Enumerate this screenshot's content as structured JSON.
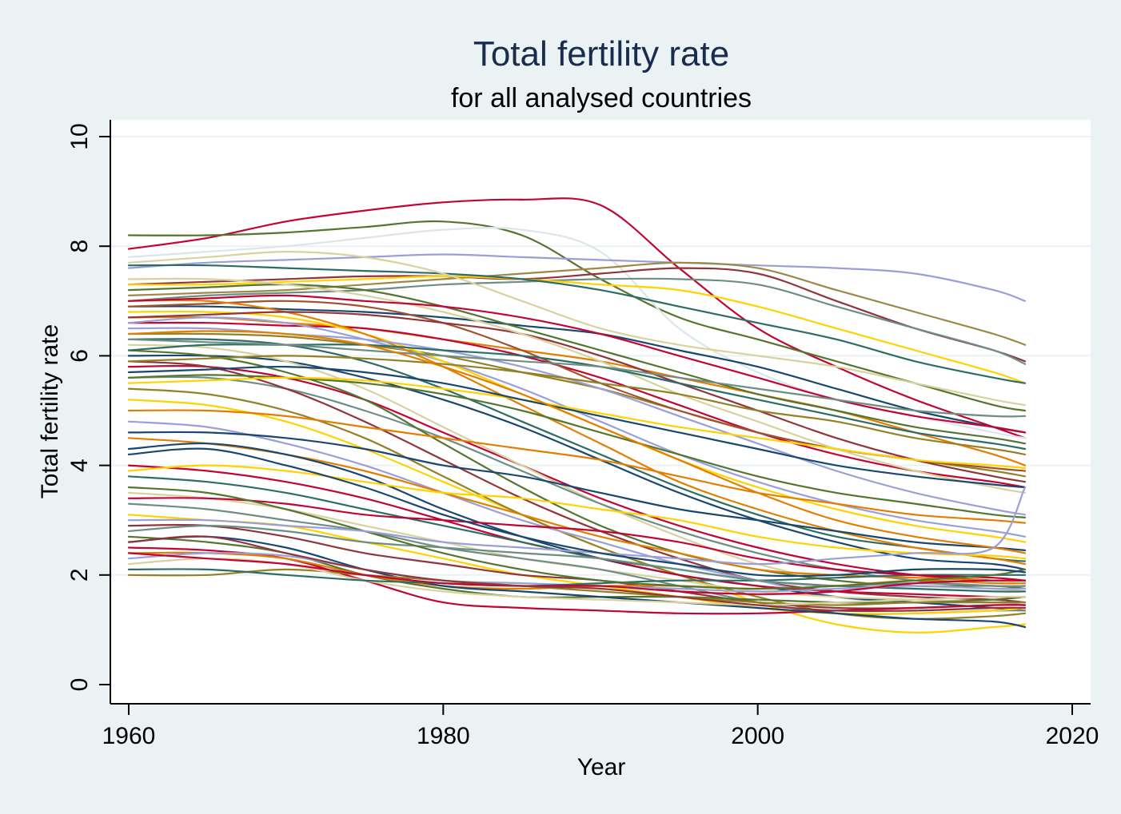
{
  "chart_data": {
    "type": "line",
    "title": "Total fertility rate",
    "subtitle": "for all analysed countries",
    "xlabel": "Year",
    "ylabel": "Total fertility rate",
    "xlim": [
      1960,
      2020
    ],
    "ylim": [
      0,
      10
    ],
    "x_ticks": [
      1960,
      1980,
      2000,
      2020
    ],
    "y_ticks": [
      0,
      2,
      4,
      6,
      8,
      10
    ],
    "grid": "horizontal",
    "x_years": [
      1960,
      1965,
      1970,
      1975,
      1980,
      1985,
      1990,
      1995,
      2000,
      2005,
      2010,
      2015,
      2017
    ],
    "series": [
      {
        "color": "#c10534",
        "values": [
          7.95,
          8.15,
          8.45,
          8.65,
          8.8,
          8.85,
          8.75,
          7.6,
          6.5,
          5.8,
          5.2,
          4.7,
          4.5
        ]
      },
      {
        "color": "#55752f",
        "values": [
          8.2,
          8.2,
          8.25,
          8.35,
          8.45,
          8.2,
          7.4,
          6.7,
          6.3,
          5.9,
          5.5,
          5.1,
          5.0
        ]
      },
      {
        "color": "#dce6ea",
        "values": [
          7.8,
          7.9,
          8.0,
          8.15,
          8.3,
          8.3,
          7.9,
          6.5,
          5.7,
          5.2,
          4.9,
          4.6,
          4.5
        ]
      },
      {
        "color": "#9a9fd6",
        "values": [
          7.6,
          7.7,
          7.75,
          7.8,
          7.85,
          7.8,
          7.75,
          7.7,
          7.65,
          7.6,
          7.5,
          7.2,
          7.0
        ]
      },
      {
        "color": "#9c8847",
        "values": [
          7.1,
          7.15,
          7.2,
          7.3,
          7.4,
          7.5,
          7.6,
          7.7,
          7.6,
          7.2,
          6.8,
          6.4,
          6.2
        ]
      },
      {
        "color": "#90353b",
        "values": [
          7.3,
          7.35,
          7.4,
          7.45,
          7.45,
          7.4,
          7.5,
          7.6,
          7.5,
          7.0,
          6.5,
          6.1,
          5.9
        ]
      },
      {
        "color": "#6e8e84",
        "values": [
          7.0,
          7.1,
          7.15,
          7.2,
          7.3,
          7.35,
          7.4,
          7.4,
          7.3,
          6.9,
          6.5,
          6.1,
          5.85
        ]
      },
      {
        "color": "#ffd200",
        "values": [
          7.3,
          7.3,
          7.35,
          7.4,
          7.45,
          7.4,
          7.3,
          7.2,
          6.9,
          6.5,
          6.1,
          5.7,
          5.5
        ]
      },
      {
        "color": "#2d6d66",
        "values": [
          7.65,
          7.65,
          7.6,
          7.55,
          7.5,
          7.4,
          7.2,
          6.9,
          6.6,
          6.3,
          5.9,
          5.6,
          5.5
        ]
      },
      {
        "color": "#d7d29e",
        "values": [
          7.7,
          7.8,
          7.9,
          7.8,
          7.5,
          7.0,
          6.5,
          6.2,
          6.0,
          5.8,
          5.5,
          5.2,
          5.1
        ]
      },
      {
        "color": "#1a476f",
        "values": [
          6.9,
          6.9,
          6.85,
          6.8,
          6.7,
          6.55,
          6.4,
          6.1,
          5.8,
          5.4,
          5.0,
          4.7,
          4.6
        ]
      },
      {
        "color": "#e37e00",
        "values": [
          6.7,
          6.7,
          6.6,
          6.5,
          6.3,
          6.1,
          5.9,
          5.6,
          5.3,
          5.0,
          4.6,
          4.2,
          4.0
        ]
      },
      {
        "color": "#c10534",
        "values": [
          6.6,
          6.6,
          6.55,
          6.5,
          6.3,
          6.0,
          5.6,
          5.1,
          4.6,
          4.2,
          3.9,
          3.7,
          3.6
        ]
      },
      {
        "color": "#55752f",
        "values": [
          7.2,
          7.25,
          7.3,
          7.2,
          6.9,
          6.5,
          6.1,
          5.7,
          5.3,
          5.0,
          4.7,
          4.5,
          4.4
        ]
      },
      {
        "color": "#938126",
        "values": [
          6.4,
          6.4,
          6.35,
          6.2,
          6.0,
          5.7,
          5.4,
          5.0,
          4.6,
          4.3,
          4.1,
          3.9,
          3.8
        ]
      },
      {
        "color": "#a0522d",
        "values": [
          6.9,
          6.95,
          7.0,
          6.9,
          6.6,
          6.1,
          5.5,
          5.0,
          4.6,
          4.3,
          4.1,
          3.95,
          3.9
        ]
      },
      {
        "color": "#9a9fd6",
        "values": [
          6.6,
          6.7,
          6.6,
          6.3,
          5.9,
          5.4,
          4.8,
          4.2,
          3.7,
          3.3,
          3.0,
          2.8,
          2.7
        ]
      },
      {
        "color": "#ffd200",
        "values": [
          6.8,
          6.8,
          6.7,
          6.4,
          5.9,
          5.3,
          4.7,
          4.1,
          3.6,
          3.2,
          2.9,
          2.7,
          2.6
        ]
      },
      {
        "color": "#2d6d66",
        "values": [
          6.3,
          6.3,
          6.2,
          5.9,
          5.4,
          4.8,
          4.2,
          3.6,
          3.1,
          2.7,
          2.5,
          2.3,
          2.25
        ]
      },
      {
        "color": "#e37e00",
        "values": [
          7.0,
          7.0,
          6.8,
          6.4,
          5.8,
          5.1,
          4.4,
          3.7,
          3.2,
          2.8,
          2.5,
          2.3,
          2.2
        ]
      },
      {
        "color": "#1a476f",
        "values": [
          6.0,
          6.0,
          5.9,
          5.6,
          5.2,
          4.7,
          4.1,
          3.5,
          3.0,
          2.6,
          2.3,
          2.2,
          2.1
        ]
      },
      {
        "color": "#c10534",
        "values": [
          5.8,
          5.8,
          5.6,
          5.2,
          4.6,
          4.0,
          3.4,
          2.9,
          2.5,
          2.2,
          2.0,
          1.9,
          1.9
        ]
      },
      {
        "color": "#d7d29e",
        "values": [
          6.2,
          6.15,
          5.9,
          5.4,
          4.7,
          4.0,
          3.3,
          2.7,
          2.2,
          1.9,
          1.8,
          1.75,
          1.7
        ]
      },
      {
        "color": "#6e8e84",
        "values": [
          5.6,
          5.6,
          5.4,
          5.0,
          4.5,
          3.9,
          3.3,
          2.8,
          2.4,
          2.1,
          1.9,
          1.8,
          1.8
        ]
      },
      {
        "color": "#90353b",
        "values": [
          5.9,
          5.8,
          5.4,
          4.8,
          4.1,
          3.4,
          2.8,
          2.3,
          1.9,
          1.7,
          1.6,
          1.55,
          1.5
        ]
      },
      {
        "color": "#55752f",
        "values": [
          6.1,
          6.0,
          5.7,
          5.2,
          4.4,
          3.6,
          2.9,
          2.4,
          2.1,
          1.9,
          1.8,
          1.8,
          1.75
        ]
      },
      {
        "color": "#ffd200",
        "values": [
          5.2,
          5.1,
          4.8,
          4.3,
          3.7,
          3.1,
          2.5,
          2.0,
          1.5,
          1.1,
          0.95,
          1.05,
          1.1
        ]
      },
      {
        "color": "#938126",
        "values": [
          5.4,
          5.3,
          5.0,
          4.5,
          3.8,
          3.1,
          2.5,
          2.0,
          1.6,
          1.3,
          1.2,
          1.25,
          1.3
        ]
      },
      {
        "color": "#9a9fd6",
        "values": [
          4.8,
          4.7,
          4.4,
          4.0,
          3.5,
          3.0,
          2.6,
          2.2,
          1.9,
          1.6,
          1.5,
          1.5,
          1.45
        ]
      },
      {
        "color": "#e37e00",
        "values": [
          4.5,
          4.4,
          4.2,
          3.9,
          3.5,
          3.1,
          2.7,
          2.4,
          2.1,
          2.0,
          1.95,
          1.9,
          1.9
        ]
      },
      {
        "color": "#1a476f",
        "values": [
          4.3,
          4.4,
          4.2,
          3.8,
          3.2,
          2.7,
          2.3,
          2.0,
          1.8,
          1.6,
          1.5,
          1.4,
          1.35
        ]
      },
      {
        "color": "#c10534",
        "values": [
          4.0,
          3.9,
          3.7,
          3.4,
          3.0,
          2.6,
          2.3,
          2.0,
          1.8,
          1.7,
          1.65,
          1.6,
          1.6
        ]
      },
      {
        "color": "#2d6d66",
        "values": [
          3.8,
          3.7,
          3.5,
          3.2,
          2.9,
          2.6,
          2.3,
          2.1,
          1.9,
          1.8,
          1.75,
          1.7,
          1.7
        ]
      },
      {
        "color": "#d7d29e",
        "values": [
          3.5,
          3.4,
          3.2,
          2.9,
          2.6,
          2.3,
          2.1,
          1.9,
          1.7,
          1.6,
          1.55,
          1.5,
          1.5
        ]
      },
      {
        "color": "#6e8e84",
        "values": [
          3.3,
          3.2,
          3.0,
          2.8,
          2.5,
          2.3,
          2.1,
          1.8,
          1.5,
          1.3,
          1.3,
          1.35,
          1.35
        ]
      },
      {
        "color": "#ffd200",
        "values": [
          3.1,
          3.0,
          2.9,
          2.6,
          2.3,
          2.0,
          1.8,
          1.6,
          1.4,
          1.3,
          1.3,
          1.35,
          1.4
        ]
      },
      {
        "color": "#90353b",
        "values": [
          2.9,
          2.9,
          2.7,
          2.4,
          2.2,
          2.0,
          1.9,
          1.7,
          1.5,
          1.4,
          1.4,
          1.45,
          1.45
        ]
      },
      {
        "color": "#55752f",
        "values": [
          2.7,
          2.6,
          2.4,
          2.0,
          1.75,
          1.6,
          1.6,
          1.6,
          1.55,
          1.5,
          1.5,
          1.55,
          1.6
        ]
      },
      {
        "color": "#c10534",
        "values": [
          2.5,
          2.45,
          2.3,
          1.9,
          1.5,
          1.4,
          1.35,
          1.3,
          1.3,
          1.35,
          1.4,
          1.45,
          1.45
        ]
      },
      {
        "color": "#e37e00",
        "values": [
          2.4,
          2.4,
          2.3,
          2.0,
          1.8,
          1.75,
          1.8,
          1.8,
          1.75,
          1.8,
          1.9,
          1.85,
          1.85
        ]
      },
      {
        "color": "#1a476f",
        "values": [
          2.6,
          2.7,
          2.5,
          2.1,
          1.8,
          1.7,
          1.6,
          1.5,
          1.4,
          1.3,
          1.2,
          1.15,
          1.05
        ]
      },
      {
        "color": "#9a9fd6",
        "values": [
          2.3,
          2.4,
          2.35,
          2.1,
          1.9,
          1.85,
          1.8,
          1.75,
          1.7,
          1.75,
          1.8,
          1.75,
          1.75
        ]
      },
      {
        "color": "#938126",
        "values": [
          2.0,
          2.0,
          2.1,
          2.0,
          1.9,
          1.8,
          1.7,
          1.6,
          1.5,
          1.45,
          1.5,
          1.5,
          1.5
        ]
      },
      {
        "color": "#d7d29e",
        "values": [
          2.2,
          2.3,
          2.2,
          1.9,
          1.7,
          1.6,
          1.55,
          1.5,
          1.45,
          1.5,
          1.55,
          1.6,
          1.6
        ]
      },
      {
        "color": "#2d6d66",
        "values": [
          2.1,
          2.1,
          2.0,
          1.9,
          1.85,
          1.8,
          1.85,
          1.9,
          1.9,
          1.95,
          2.0,
          2.0,
          2.0
        ]
      },
      {
        "color": "#6e8e84",
        "values": [
          2.8,
          2.9,
          2.8,
          2.6,
          2.5,
          2.4,
          2.3,
          2.1,
          1.9,
          1.8,
          1.85,
          1.8,
          1.8
        ]
      },
      {
        "color": "#c10534",
        "values": [
          3.4,
          3.4,
          3.3,
          3.1,
          3.0,
          2.9,
          2.8,
          2.6,
          2.3,
          2.1,
          2.0,
          1.95,
          1.9
        ]
      },
      {
        "color": "#ffd200",
        "values": [
          3.9,
          4.0,
          3.9,
          3.7,
          3.5,
          3.4,
          3.2,
          3.0,
          2.7,
          2.5,
          2.4,
          2.35,
          2.3
        ]
      },
      {
        "color": "#1a476f",
        "values": [
          4.6,
          4.6,
          4.5,
          4.3,
          4.0,
          3.8,
          3.5,
          3.2,
          3.0,
          2.8,
          2.6,
          2.5,
          2.45
        ]
      },
      {
        "color": "#e37e00",
        "values": [
          5.0,
          5.0,
          4.9,
          4.7,
          4.5,
          4.3,
          4.1,
          3.8,
          3.5,
          3.3,
          3.1,
          3.0,
          2.95
        ]
      },
      {
        "color": "#55752f",
        "values": [
          5.6,
          5.65,
          5.6,
          5.5,
          5.3,
          5.0,
          4.6,
          4.2,
          3.8,
          3.5,
          3.3,
          3.1,
          3.05
        ]
      },
      {
        "color": "#9a9fd6",
        "values": [
          6.5,
          6.5,
          6.4,
          6.3,
          6.1,
          5.8,
          5.4,
          4.9,
          4.4,
          3.9,
          3.5,
          3.2,
          3.1
        ]
      },
      {
        "color": "#90353b",
        "values": [
          6.7,
          6.75,
          6.8,
          6.75,
          6.6,
          6.4,
          6.0,
          5.5,
          5.0,
          4.5,
          4.1,
          3.8,
          3.7
        ]
      },
      {
        "color": "#d7d29e",
        "values": [
          7.4,
          7.4,
          7.3,
          7.1,
          6.8,
          6.4,
          5.9,
          5.3,
          4.8,
          4.3,
          3.9,
          3.6,
          3.5
        ]
      },
      {
        "color": "#2d6d66",
        "values": [
          6.1,
          6.2,
          6.2,
          6.2,
          6.1,
          6.0,
          5.8,
          5.5,
          5.2,
          4.9,
          4.6,
          4.4,
          4.3
        ]
      },
      {
        "color": "#938126",
        "values": [
          5.9,
          5.95,
          6.0,
          5.95,
          5.85,
          5.7,
          5.5,
          5.3,
          5.0,
          4.8,
          4.5,
          4.3,
          4.2
        ]
      },
      {
        "color": "#c10534",
        "values": [
          7.0,
          7.05,
          7.1,
          7.0,
          6.9,
          6.7,
          6.4,
          6.0,
          5.6,
          5.2,
          4.9,
          4.7,
          4.6
        ]
      },
      {
        "color": "#6e8e84",
        "values": [
          6.3,
          6.25,
          6.2,
          6.1,
          6.0,
          5.9,
          5.8,
          5.6,
          5.4,
          5.2,
          5.0,
          4.9,
          4.9
        ]
      },
      {
        "color": "#ffd200",
        "values": [
          5.5,
          5.55,
          5.6,
          5.55,
          5.4,
          5.2,
          4.95,
          4.7,
          4.5,
          4.3,
          4.1,
          4.0,
          3.95
        ]
      },
      {
        "color": "#1a476f",
        "values": [
          5.7,
          5.75,
          5.8,
          5.7,
          5.5,
          5.2,
          4.9,
          4.6,
          4.3,
          4.0,
          3.8,
          3.65,
          3.6
        ]
      },
      {
        "color": "#e37e00",
        "values": [
          6.4,
          6.45,
          6.4,
          6.2,
          5.8,
          5.3,
          4.7,
          4.1,
          3.5,
          3.0,
          2.7,
          2.5,
          2.4
        ]
      },
      {
        "color": "#55752f",
        "values": [
          3.6,
          3.5,
          3.2,
          2.8,
          2.4,
          2.1,
          1.9,
          1.8,
          1.75,
          1.8,
          1.9,
          2.0,
          2.1
        ]
      },
      {
        "color": "#9a9fd6",
        "values": [
          3.0,
          3.0,
          2.9,
          2.8,
          2.6,
          2.5,
          2.4,
          2.3,
          2.2,
          2.3,
          2.4,
          2.5,
          3.6
        ]
      },
      {
        "color": "#c10534",
        "values": [
          2.4,
          2.3,
          2.2,
          2.0,
          1.85,
          1.8,
          1.8,
          1.7,
          1.65,
          1.7,
          1.85,
          1.9,
          1.9
        ]
      },
      {
        "color": "#90353b",
        "values": [
          2.6,
          2.7,
          2.4,
          2.1,
          1.9,
          1.8,
          1.75,
          1.6,
          1.45,
          1.35,
          1.35,
          1.4,
          1.4
        ]
      },
      {
        "color": "#1a476f",
        "values": [
          4.2,
          4.3,
          4.0,
          3.6,
          3.1,
          2.7,
          2.4,
          2.2,
          2.0,
          2.0,
          2.1,
          2.1,
          2.05
        ]
      }
    ]
  }
}
